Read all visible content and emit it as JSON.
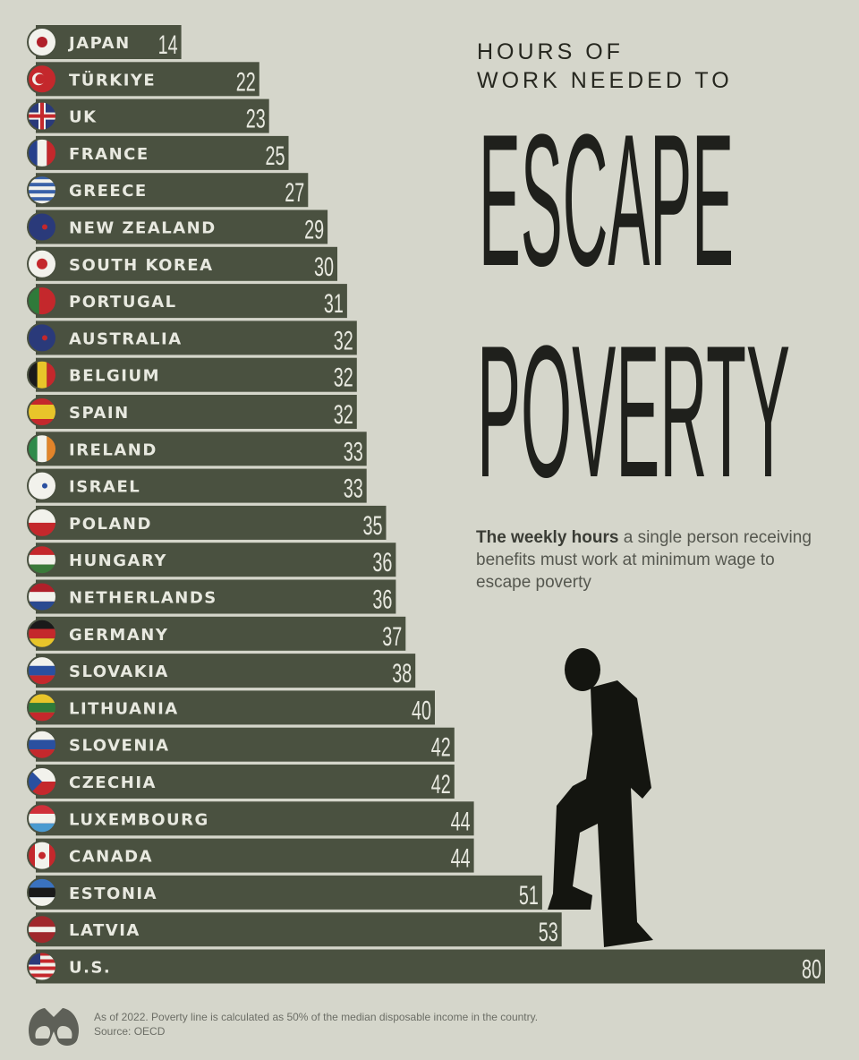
{
  "header": {
    "kicker_line1": "HOURS OF",
    "kicker_line2": "WORK NEEDED TO",
    "title_line1": "ESCAPE",
    "title_line2": "POVERTY",
    "subtitle_bold": "The weekly hours",
    "subtitle_rest": " a single person receiving benefits must work at minimum wage to escape poverty"
  },
  "footer": {
    "note": "As of 2022. Poverty line is calculated as 50% of the median disposable income in the country.",
    "source": "Source: OECD"
  },
  "colors": {
    "background": "#d5d6cb",
    "bar": "#4a5140",
    "label": "#e8e9e0",
    "title": "#1f201c"
  },
  "chart_data": {
    "type": "bar",
    "orientation": "horizontal",
    "title": "HOURS OF WORK NEEDED TO ESCAPE POVERTY",
    "categories": [
      "JAPAN",
      "TÜRKIYE",
      "UK",
      "FRANCE",
      "GREECE",
      "NEW ZEALAND",
      "SOUTH KOREA",
      "PORTUGAL",
      "AUSTRALIA",
      "BELGIUM",
      "SPAIN",
      "IRELAND",
      "ISRAEL",
      "POLAND",
      "HUNGARY",
      "NETHERLANDS",
      "GERMANY",
      "SLOVAKIA",
      "LITHUANIA",
      "SLOVENIA",
      "CZECHIA",
      "LUXEMBOURG",
      "CANADA",
      "ESTONIA",
      "LATVIA",
      "U.S."
    ],
    "values": [
      14,
      22,
      23,
      25,
      27,
      29,
      30,
      31,
      32,
      32,
      32,
      33,
      33,
      35,
      36,
      36,
      37,
      38,
      40,
      42,
      42,
      44,
      44,
      51,
      53,
      80
    ],
    "value_labels": [
      "14",
      "22",
      "23",
      "25",
      "27",
      "29",
      "30",
      "31",
      "32",
      "32",
      "32",
      "33",
      "33",
      "35",
      "36",
      "36",
      "37",
      "38",
      "40",
      "42",
      "42",
      "44",
      "44",
      "51",
      "53",
      "80"
    ],
    "flags": [
      "japan-flag",
      "turkiye-flag",
      "uk-flag",
      "france-flag",
      "greece-flag",
      "new-zealand-flag",
      "south-korea-flag",
      "portugal-flag",
      "australia-flag",
      "belgium-flag",
      "spain-flag",
      "ireland-flag",
      "israel-flag",
      "poland-flag",
      "hungary-flag",
      "netherlands-flag",
      "germany-flag",
      "slovakia-flag",
      "lithuania-flag",
      "slovenia-flag",
      "czechia-flag",
      "luxembourg-flag",
      "canada-flag",
      "estonia-flag",
      "latvia-flag",
      "us-flag"
    ],
    "sorted": "ascending"
  }
}
